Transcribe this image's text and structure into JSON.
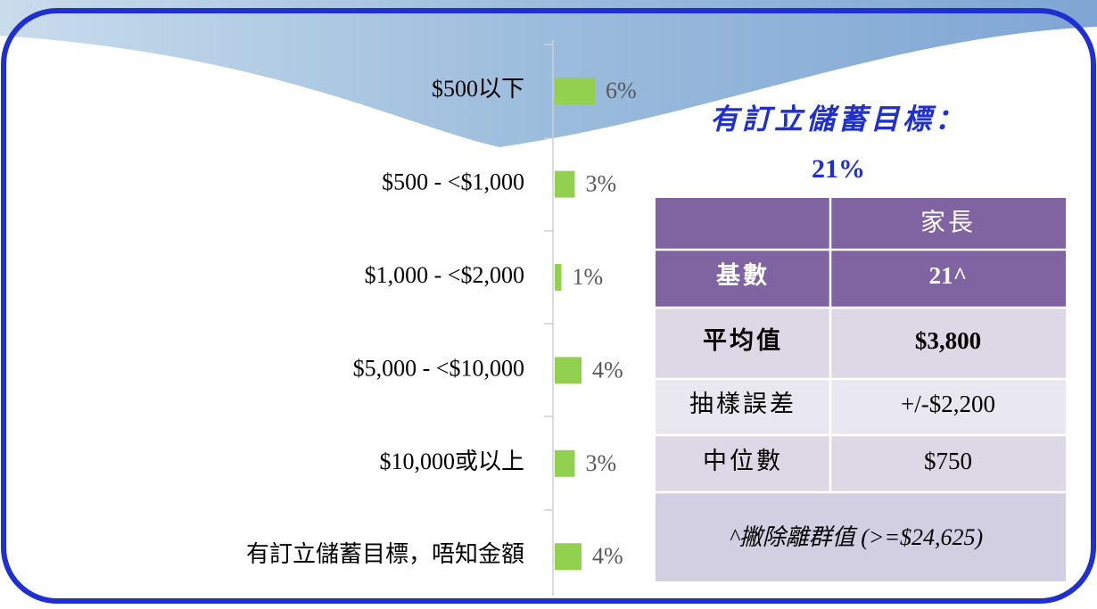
{
  "chart_data": {
    "type": "hbar",
    "categories": [
      "$500以下",
      "$500 - <$1,000",
      "$1,000 - <$2,000",
      "$5,000 - <$10,000",
      "$10,000或以上",
      "有訂立儲蓄目標，唔知金額"
    ],
    "values": [
      6,
      3,
      1,
      4,
      3,
      4
    ],
    "value_labels": [
      "6%",
      "3%",
      "1%",
      "4%",
      "3%",
      "4%"
    ],
    "color": "#92d050"
  },
  "headline": {
    "title": "有訂立儲蓄目標：",
    "value": "21%"
  },
  "table": {
    "header": "家長",
    "rows": [
      [
        "基數",
        "21^"
      ],
      [
        "平均值",
        "$3,800"
      ],
      [
        "抽樣誤差",
        "+/-$2,200"
      ],
      [
        "中位數",
        "$750"
      ]
    ],
    "note": "^撇除離群值 (>=$24,625)"
  }
}
